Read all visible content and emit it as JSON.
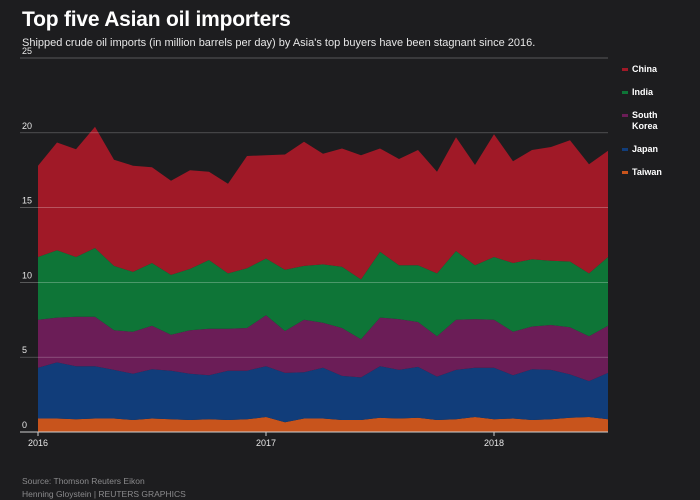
{
  "title": "Top five Asian oil importers",
  "subtitle": "Shipped crude oil imports (in million barrels per day) by Asia's top buyers have been stagnant since 2016.",
  "source": "Source: Thomson Reuters Eikon",
  "credit": "Henning Gloystein   | REUTERS GRAPHICS",
  "chart_data": {
    "type": "area",
    "stacked": true,
    "title": "Top five Asian oil importers",
    "ylabel": "",
    "xlabel": "",
    "ylim": [
      0,
      25
    ],
    "y_ticks": [
      "0",
      "5",
      "10",
      "15",
      "20",
      "25"
    ],
    "x_ticks": [
      {
        "label": "2016",
        "month_index": 0
      },
      {
        "label": "2017",
        "month_index": 12
      },
      {
        "label": "2018",
        "month_index": 24
      }
    ],
    "x": [
      "2016-01",
      "2016-02",
      "2016-03",
      "2016-04",
      "2016-05",
      "2016-06",
      "2016-07",
      "2016-08",
      "2016-09",
      "2016-10",
      "2016-11",
      "2016-12",
      "2017-01",
      "2017-02",
      "2017-03",
      "2017-04",
      "2017-05",
      "2017-06",
      "2017-07",
      "2017-08",
      "2017-09",
      "2017-10",
      "2017-11",
      "2017-12",
      "2018-01",
      "2018-02",
      "2018-03",
      "2018-04",
      "2018-05",
      "2018-06",
      "2018-07"
    ],
    "legend_position": "right",
    "grid": true,
    "series": [
      {
        "name": "Taiwan",
        "color": "#c8541c",
        "values": [
          0.9,
          0.9,
          0.85,
          0.9,
          0.9,
          0.8,
          0.9,
          0.85,
          0.8,
          0.85,
          0.8,
          0.85,
          1.0,
          0.65,
          0.9,
          0.9,
          0.8,
          0.8,
          0.95,
          0.9,
          0.95,
          0.8,
          0.85,
          1.0,
          0.85,
          0.9,
          0.8,
          0.85,
          0.95,
          1.0,
          0.85
        ]
      },
      {
        "name": "Japan",
        "color": "#113d7a",
        "values": [
          3.4,
          3.75,
          3.55,
          3.5,
          3.25,
          3.1,
          3.3,
          3.25,
          3.1,
          2.95,
          3.3,
          3.25,
          3.4,
          3.3,
          3.1,
          3.4,
          2.95,
          2.85,
          3.45,
          3.25,
          3.4,
          2.9,
          3.3,
          3.3,
          3.45,
          2.9,
          3.4,
          3.3,
          2.9,
          2.4,
          3.1
        ]
      },
      {
        "name": "South Korea",
        "color": "#6b1d57",
        "values": [
          3.2,
          3.0,
          3.3,
          3.3,
          2.65,
          2.8,
          2.9,
          2.4,
          2.9,
          3.1,
          2.8,
          2.85,
          3.4,
          2.8,
          3.5,
          3.0,
          3.2,
          2.55,
          3.25,
          3.4,
          3.0,
          2.7,
          3.35,
          3.25,
          3.2,
          2.9,
          2.85,
          3.0,
          3.15,
          3.0,
          3.15
        ]
      },
      {
        "name": "India",
        "color": "#0e7537",
        "values": [
          4.2,
          4.5,
          4.0,
          4.6,
          4.3,
          4.0,
          4.2,
          4.0,
          4.1,
          4.6,
          3.7,
          4.0,
          3.8,
          4.1,
          3.6,
          3.9,
          4.1,
          4.0,
          4.4,
          3.6,
          3.8,
          4.2,
          4.6,
          3.6,
          4.2,
          4.6,
          4.5,
          4.3,
          4.4,
          4.2,
          4.6
        ]
      },
      {
        "name": "China",
        "color": "#a01927",
        "values": [
          6.1,
          7.2,
          7.2,
          8.1,
          7.1,
          7.1,
          6.4,
          6.3,
          6.6,
          5.9,
          6.0,
          7.5,
          6.9,
          7.7,
          8.3,
          7.4,
          7.9,
          8.3,
          6.9,
          7.1,
          7.7,
          6.8,
          7.6,
          6.7,
          8.2,
          6.8,
          7.3,
          7.6,
          8.1,
          7.3,
          7.1
        ]
      }
    ]
  }
}
